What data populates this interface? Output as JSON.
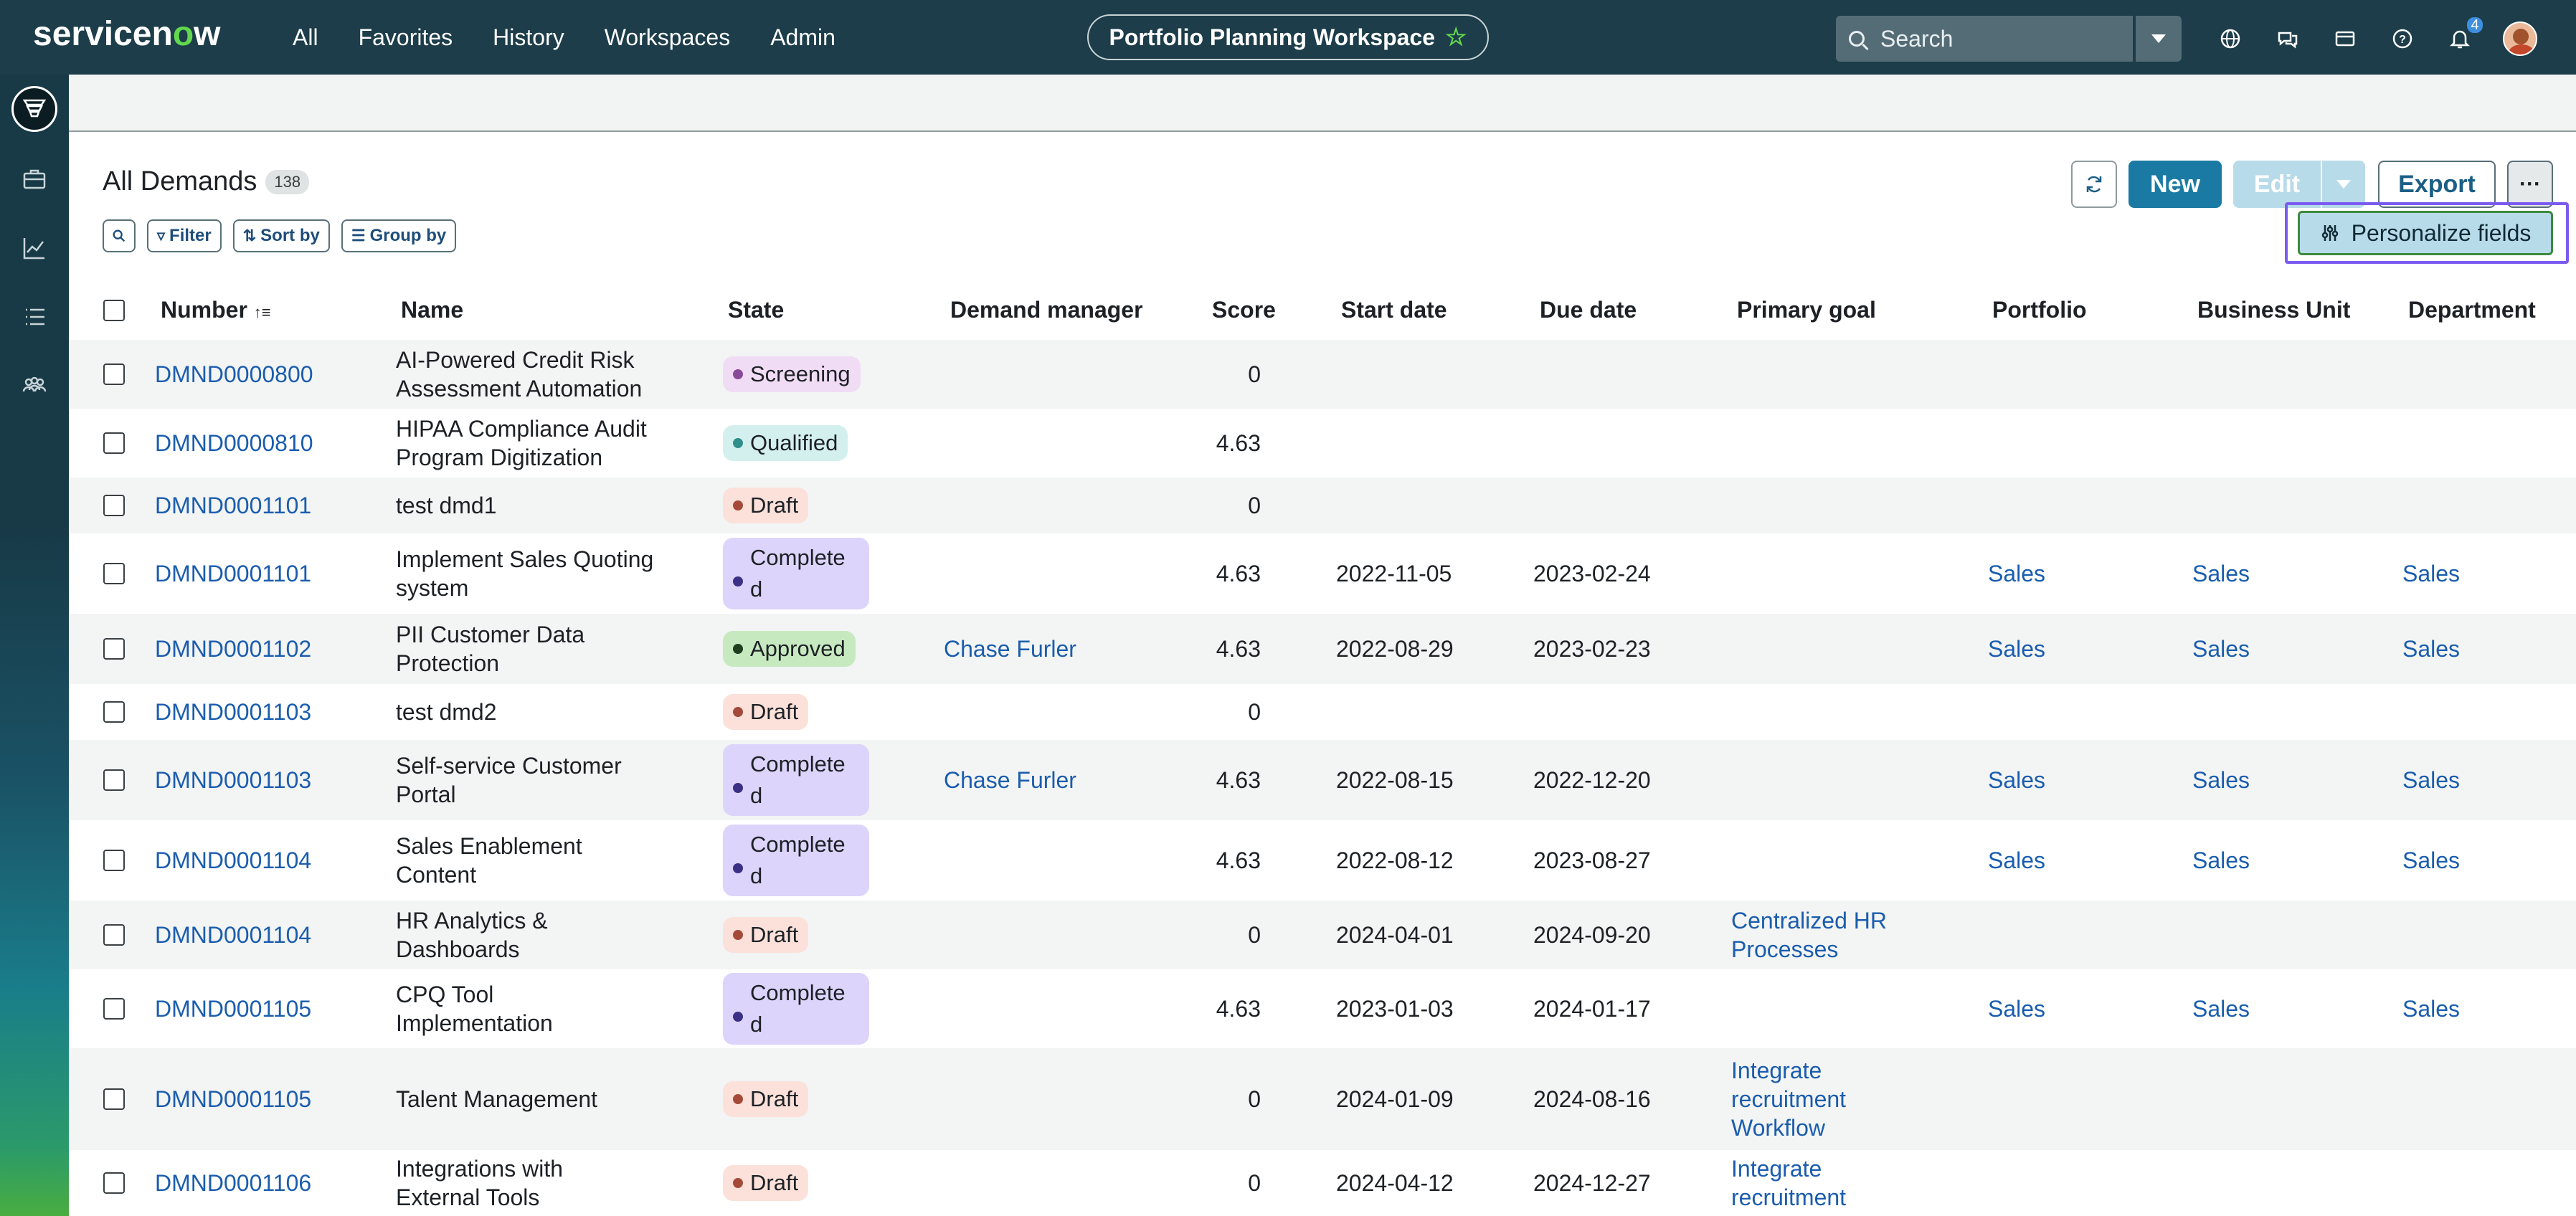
{
  "header": {
    "logo_text": "servicenow",
    "nav": [
      "All",
      "Favorites",
      "History",
      "Workspaces",
      "Admin"
    ],
    "workspace_title": "Portfolio Planning Workspace",
    "search_placeholder": "Search",
    "notification_count": "4"
  },
  "rail": {
    "items": [
      "demands-icon",
      "portfolio-icon",
      "analytics-icon",
      "list-icon",
      "teams-icon"
    ]
  },
  "list": {
    "title": "All Demands",
    "count": "138",
    "tools": {
      "filter": "Filter",
      "sort": "Sort by",
      "group": "Group by"
    },
    "actions": {
      "new": "New",
      "edit": "Edit",
      "export": "Export",
      "more": "···",
      "personalize": "Personalize fields"
    }
  },
  "columns": [
    "Number",
    "Name",
    "State",
    "Demand manager",
    "Score",
    "Start date",
    "Due date",
    "Primary goal",
    "Portfolio",
    "Business Unit",
    "Department"
  ],
  "state_colors": {
    "Screening": {
      "bg": "#f1dcf5",
      "dot": "#8a4a9a"
    },
    "Qualified": {
      "bg": "#d4f0ee",
      "dot": "#2f8f8a"
    },
    "Draft": {
      "bg": "#fbe1da",
      "dot": "#a54a39"
    },
    "Complete d": {
      "bg": "#dcd4fa",
      "dot": "#3b2f86"
    },
    "Approved": {
      "bg": "#c7e9c0",
      "dot": "#1f3d1f"
    }
  },
  "rows": [
    {
      "number": "DMND0000800",
      "name": [
        "AI-Powered Credit Risk",
        "Assessment Automation"
      ],
      "state": "Screening",
      "manager": "",
      "score": "0",
      "start": "",
      "due": "",
      "goal": [],
      "portfolio": "",
      "bu": "",
      "dept": ""
    },
    {
      "number": "DMND0000810",
      "name": [
        "HIPAA Compliance Audit",
        "Program Digitization"
      ],
      "state": "Qualified",
      "manager": "",
      "score": "4.63",
      "start": "",
      "due": "",
      "goal": [],
      "portfolio": "",
      "bu": "",
      "dept": ""
    },
    {
      "number": "DMND0001101",
      "name": [
        "test dmd1"
      ],
      "state": "Draft",
      "manager": "",
      "score": "0",
      "start": "",
      "due": "",
      "goal": [],
      "portfolio": "",
      "bu": "",
      "dept": ""
    },
    {
      "number": "DMND0001101",
      "name": [
        "Implement Sales Quoting",
        "system"
      ],
      "state": "Complete d",
      "manager": "",
      "score": "4.63",
      "start": "2022-11-05",
      "due": "2023-02-24",
      "goal": [],
      "portfolio": "Sales",
      "bu": "Sales",
      "dept": "Sales"
    },
    {
      "number": "DMND0001102",
      "name": [
        "PII Customer Data",
        "Protection"
      ],
      "state": "Approved",
      "manager": "Chase Furler",
      "score": "4.63",
      "start": "2022-08-29",
      "due": "2023-02-23",
      "goal": [],
      "portfolio": "Sales",
      "bu": "Sales",
      "dept": "Sales"
    },
    {
      "number": "DMND0001103",
      "name": [
        "test dmd2"
      ],
      "state": "Draft",
      "manager": "",
      "score": "0",
      "start": "",
      "due": "",
      "goal": [],
      "portfolio": "",
      "bu": "",
      "dept": ""
    },
    {
      "number": "DMND0001103",
      "name": [
        "Self-service Customer",
        "Portal"
      ],
      "state": "Complete d",
      "manager": "Chase Furler",
      "score": "4.63",
      "start": "2022-08-15",
      "due": "2022-12-20",
      "goal": [],
      "portfolio": "Sales",
      "bu": "Sales",
      "dept": "Sales"
    },
    {
      "number": "DMND0001104",
      "name": [
        "Sales Enablement",
        "Content"
      ],
      "state": "Complete d",
      "manager": "",
      "score": "4.63",
      "start": "2022-08-12",
      "due": "2023-08-27",
      "goal": [],
      "portfolio": "Sales",
      "bu": "Sales",
      "dept": "Sales"
    },
    {
      "number": "DMND0001104",
      "name": [
        "HR Analytics &",
        "Dashboards"
      ],
      "state": "Draft",
      "manager": "",
      "score": "0",
      "start": "2024-04-01",
      "due": "2024-09-20",
      "goal": [
        "Centralized HR",
        "Processes"
      ],
      "portfolio": "",
      "bu": "",
      "dept": ""
    },
    {
      "number": "DMND0001105",
      "name": [
        "CPQ Tool",
        "Implementation"
      ],
      "state": "Complete d",
      "manager": "",
      "score": "4.63",
      "start": "2023-01-03",
      "due": "2024-01-17",
      "goal": [],
      "portfolio": "Sales",
      "bu": "Sales",
      "dept": "Sales"
    },
    {
      "number": "DMND0001105",
      "name": [
        "Talent Management"
      ],
      "state": "Draft",
      "manager": "",
      "score": "0",
      "start": "2024-01-09",
      "due": "2024-08-16",
      "goal": [
        "Integrate",
        "recruitment",
        "Workflow"
      ],
      "portfolio": "",
      "bu": "",
      "dept": ""
    },
    {
      "number": "DMND0001106",
      "name": [
        "Integrations with",
        "External Tools"
      ],
      "state": "Draft",
      "manager": "",
      "score": "0",
      "start": "2024-04-12",
      "due": "2024-12-27",
      "goal": [
        "Integrate",
        "recruitment"
      ],
      "portfolio": "",
      "bu": "",
      "dept": ""
    }
  ]
}
